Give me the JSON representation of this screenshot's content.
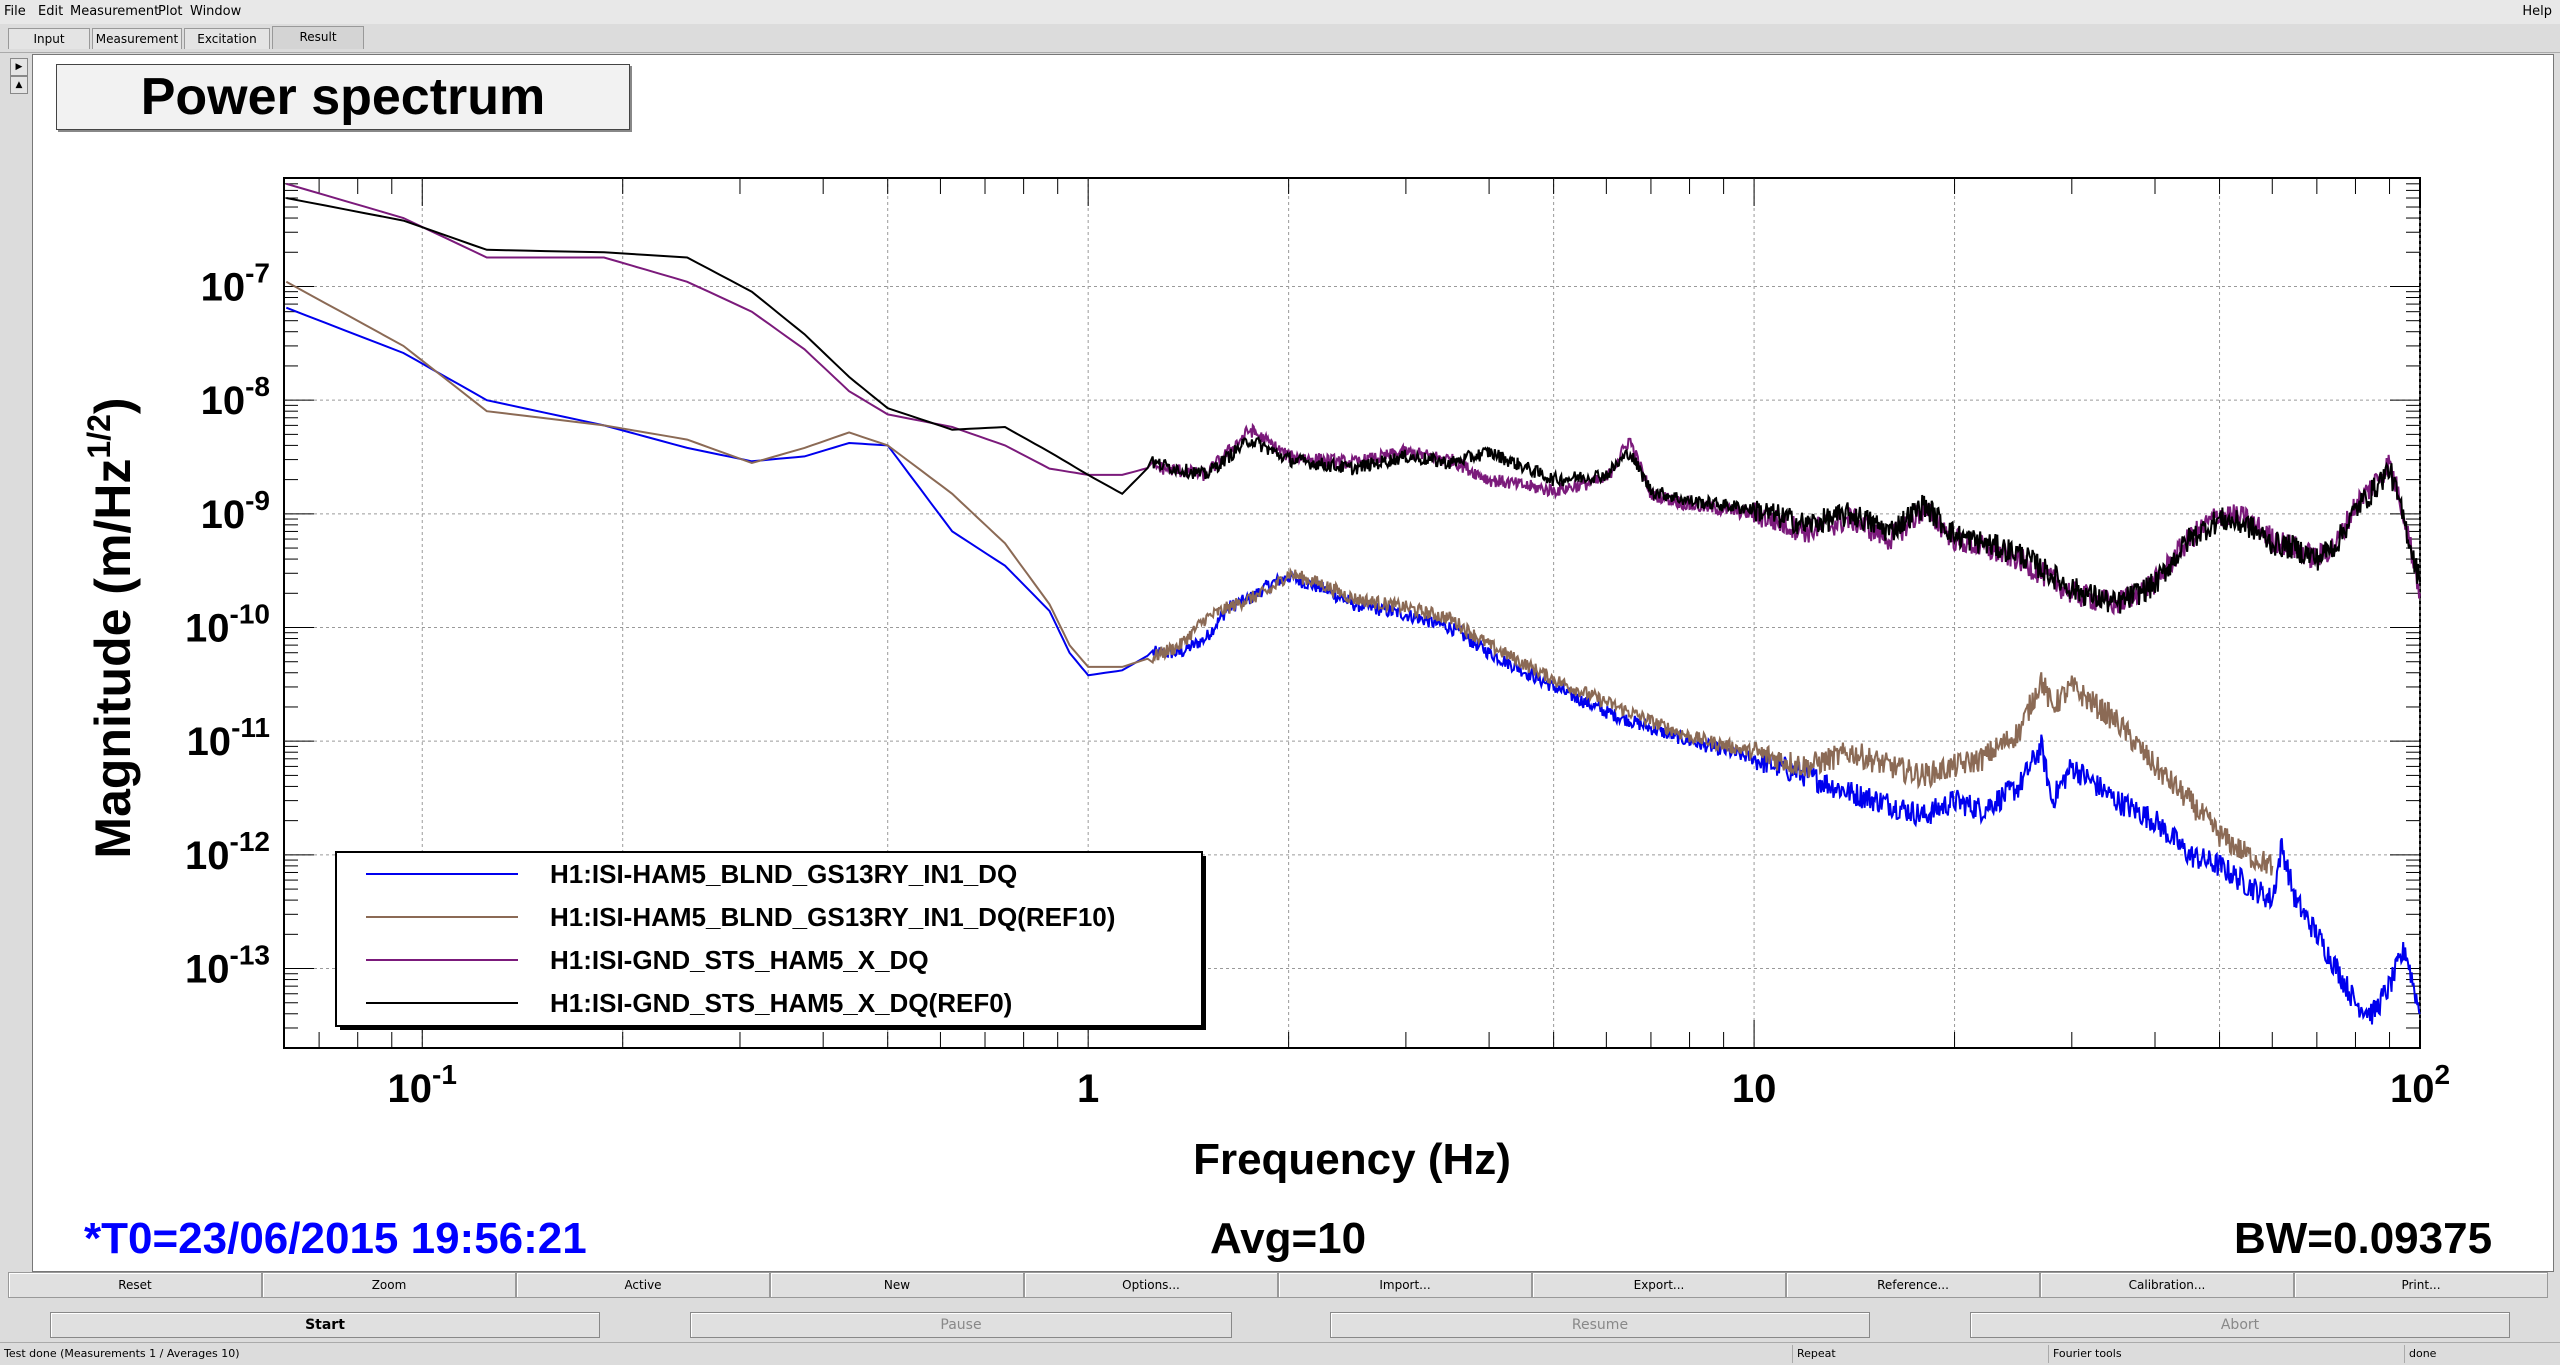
{
  "menu": [
    "File",
    "Edit",
    "Measurement",
    "Plot",
    "Window"
  ],
  "help": "Help",
  "tabs": [
    "Input",
    "Measurement",
    "Excitation",
    "Result"
  ],
  "active_tab": "Result",
  "plot_title": "Power spectrum",
  "footer": {
    "t0": "*T0=23/06/2015 19:56:21",
    "avg": "Avg=10",
    "bw": "BW=0.09375"
  },
  "buttons": [
    "Reset",
    "Zoom",
    "Active",
    "New",
    "Options...",
    "Import...",
    "Export...",
    "Reference...",
    "Calibration...",
    "Print..."
  ],
  "controls": {
    "start": "Start",
    "pause": "Pause",
    "resume": "Resume",
    "abort": "Abort"
  },
  "status": {
    "message": "Test done (Measurements 1 / Averages 10)",
    "repeat": "Repeat",
    "fourier": "Fourier tools",
    "state": "done"
  },
  "colors": {
    "blue": "#0000ee",
    "brown": "#8b6a55",
    "purple": "#7b1a7b",
    "black": "#000000",
    "footer_t0": "#0000ff"
  },
  "chart_data": {
    "type": "line",
    "xlabel": "Frequency (Hz)",
    "ylabel": "Magnitude (m/Hz^1/2)",
    "xscale": "log",
    "yscale": "log",
    "xlim": [
      0.062,
      100
    ],
    "ylim": [
      2e-14,
      9e-07
    ],
    "grid": true,
    "legend_position": "bottom-left",
    "x_tick_labels": [
      "10-1",
      "1",
      "10",
      "102"
    ],
    "y_tick_labels": [
      "10-7",
      "10-8",
      "10-9",
      "10-10",
      "10-11",
      "10-12",
      "10-13"
    ],
    "series": [
      {
        "name": "H1:ISI-HAM5_BLND_GS13RY_IN1_DQ",
        "color": "#0000ee",
        "points": [
          [
            0.0625,
            6.5e-08
          ],
          [
            0.0937,
            2.6e-08
          ],
          [
            0.125,
            1e-08
          ],
          [
            0.1875,
            6e-09
          ],
          [
            0.25,
            3.8e-09
          ],
          [
            0.3125,
            2.9e-09
          ],
          [
            0.375,
            3.2e-09
          ],
          [
            0.4375,
            4.2e-09
          ],
          [
            0.5,
            4e-09
          ],
          [
            0.625,
            7e-10
          ],
          [
            0.75,
            3.5e-10
          ],
          [
            0.875,
            1.4e-10
          ],
          [
            0.9375,
            6e-11
          ],
          [
            1.0,
            3.8e-11
          ],
          [
            1.125,
            4.2e-11
          ],
          [
            1.25,
            6e-11
          ],
          [
            1.375,
            6e-11
          ],
          [
            1.5,
            8e-11
          ],
          [
            1.625,
            1.5e-10
          ],
          [
            1.75,
            1.8e-10
          ],
          [
            1.875,
            2.4e-10
          ],
          [
            2.0,
            2.8e-10
          ],
          [
            2.25,
            2.2e-10
          ],
          [
            2.5,
            1.6e-10
          ],
          [
            3.0,
            1.3e-10
          ],
          [
            3.5,
            1e-10
          ],
          [
            4.0,
            6e-11
          ],
          [
            5.0,
            3e-11
          ],
          [
            6.0,
            1.8e-11
          ],
          [
            7.0,
            1.3e-11
          ],
          [
            8.0,
            1e-11
          ],
          [
            10.0,
            7e-12
          ],
          [
            12.0,
            5e-12
          ],
          [
            14.0,
            3.5e-12
          ],
          [
            16.0,
            2.8e-12
          ],
          [
            18.0,
            2.2e-12
          ],
          [
            20.0,
            3e-12
          ],
          [
            22.0,
            2.5e-12
          ],
          [
            25.0,
            4e-12
          ],
          [
            27.0,
            9e-12
          ],
          [
            28.0,
            3e-12
          ],
          [
            30.0,
            6e-12
          ],
          [
            35.0,
            3e-12
          ],
          [
            40.0,
            2e-12
          ],
          [
            45.0,
            1e-12
          ],
          [
            50.0,
            8e-13
          ],
          [
            55.0,
            5.5e-13
          ],
          [
            60.0,
            4e-13
          ],
          [
            62.0,
            1.2e-12
          ],
          [
            65.0,
            4e-13
          ],
          [
            70.0,
            2e-13
          ],
          [
            75.0,
            1e-13
          ],
          [
            80.0,
            5e-14
          ],
          [
            85.0,
            4e-14
          ],
          [
            90.0,
            7e-14
          ],
          [
            95.0,
            1.5e-13
          ],
          [
            100.0,
            4e-14
          ]
        ]
      },
      {
        "name": "H1:ISI-HAM5_BLND_GS13RY_IN1_DQ(REF10)",
        "color": "#8b6a55",
        "points": [
          [
            0.0625,
            1.1e-07
          ],
          [
            0.0937,
            3e-08
          ],
          [
            0.125,
            8e-09
          ],
          [
            0.1875,
            6e-09
          ],
          [
            0.25,
            4.5e-09
          ],
          [
            0.3125,
            2.8e-09
          ],
          [
            0.375,
            3.8e-09
          ],
          [
            0.4375,
            5.2e-09
          ],
          [
            0.5,
            4e-09
          ],
          [
            0.625,
            1.5e-09
          ],
          [
            0.75,
            5.5e-10
          ],
          [
            0.875,
            1.6e-10
          ],
          [
            0.9375,
            7e-11
          ],
          [
            1.0,
            4.5e-11
          ],
          [
            1.125,
            4.5e-11
          ],
          [
            1.25,
            5.5e-11
          ],
          [
            1.375,
            7e-11
          ],
          [
            1.5,
            1.2e-10
          ],
          [
            1.625,
            1.5e-10
          ],
          [
            1.75,
            1.8e-10
          ],
          [
            1.875,
            2.1e-10
          ],
          [
            2.0,
            3e-10
          ],
          [
            2.25,
            2.4e-10
          ],
          [
            2.5,
            1.8e-10
          ],
          [
            3.0,
            1.5e-10
          ],
          [
            3.5,
            1.2e-10
          ],
          [
            4.0,
            7e-11
          ],
          [
            5.0,
            3.5e-11
          ],
          [
            6.0,
            2.2e-11
          ],
          [
            7.0,
            1.5e-11
          ],
          [
            8.0,
            1.1e-11
          ],
          [
            10.0,
            8e-12
          ],
          [
            12.0,
            6e-12
          ],
          [
            14.0,
            8e-12
          ],
          [
            16.0,
            6e-12
          ],
          [
            18.0,
            5e-12
          ],
          [
            20.0,
            6e-12
          ],
          [
            22.0,
            7e-12
          ],
          [
            25.0,
            1.2e-11
          ],
          [
            27.0,
            3.5e-11
          ],
          [
            28.0,
            2e-11
          ],
          [
            30.0,
            3e-11
          ],
          [
            35.0,
            1.5e-11
          ],
          [
            40.0,
            6e-12
          ],
          [
            45.0,
            3e-12
          ],
          [
            50.0,
            1.5e-12
          ],
          [
            55.0,
            1e-12
          ],
          [
            60.0,
            8e-13
          ]
        ]
      },
      {
        "name": "H1:ISI-GND_STS_HAM5_X_DQ",
        "color": "#7b1a7b",
        "points": [
          [
            0.0625,
            8e-07
          ],
          [
            0.0937,
            4e-07
          ],
          [
            0.125,
            1.8e-07
          ],
          [
            0.1875,
            1.8e-07
          ],
          [
            0.25,
            1.1e-07
          ],
          [
            0.3125,
            6e-08
          ],
          [
            0.375,
            2.8e-08
          ],
          [
            0.4375,
            1.2e-08
          ],
          [
            0.5,
            7.5e-09
          ],
          [
            0.625,
            5.8e-09
          ],
          [
            0.75,
            4e-09
          ],
          [
            0.875,
            2.5e-09
          ],
          [
            1.0,
            2.2e-09
          ],
          [
            1.125,
            2.2e-09
          ],
          [
            1.25,
            2.6e-09
          ],
          [
            1.5,
            2.2e-09
          ],
          [
            1.75,
            5.5e-09
          ],
          [
            2.0,
            3.2e-09
          ],
          [
            2.5,
            2.8e-09
          ],
          [
            3.0,
            3.5e-09
          ],
          [
            3.5,
            3e-09
          ],
          [
            4.0,
            2e-09
          ],
          [
            5.0,
            1.6e-09
          ],
          [
            6.0,
            2e-09
          ],
          [
            6.5,
            4.5e-09
          ],
          [
            7.0,
            1.5e-09
          ],
          [
            8.0,
            1.2e-09
          ],
          [
            10.0,
            1e-09
          ],
          [
            12.0,
            7e-10
          ],
          [
            14.0,
            9e-10
          ],
          [
            16.0,
            6e-10
          ],
          [
            18.0,
            1.1e-09
          ],
          [
            20.0,
            6e-10
          ],
          [
            25.0,
            4e-10
          ],
          [
            30.0,
            2e-10
          ],
          [
            35.0,
            1.6e-10
          ],
          [
            40.0,
            2.5e-10
          ],
          [
            45.0,
            6e-10
          ],
          [
            50.0,
            1e-09
          ],
          [
            55.0,
            9e-10
          ],
          [
            60.0,
            6e-10
          ],
          [
            65.0,
            5e-10
          ],
          [
            70.0,
            4e-10
          ],
          [
            75.0,
            5.5e-10
          ],
          [
            80.0,
            1.2e-09
          ],
          [
            85.0,
            1.8e-09
          ],
          [
            90.0,
            2.8e-09
          ],
          [
            95.0,
            9e-10
          ],
          [
            100.0,
            2e-10
          ]
        ]
      },
      {
        "name": "H1:ISI-GND_STS_HAM5_X_DQ(REF0)",
        "color": "#000000",
        "points": [
          [
            0.0625,
            6e-07
          ],
          [
            0.0937,
            3.8e-07
          ],
          [
            0.125,
            2.1e-07
          ],
          [
            0.1875,
            2e-07
          ],
          [
            0.25,
            1.8e-07
          ],
          [
            0.3125,
            9e-08
          ],
          [
            0.375,
            3.8e-08
          ],
          [
            0.4375,
            1.6e-08
          ],
          [
            0.5,
            8.5e-09
          ],
          [
            0.625,
            5.5e-09
          ],
          [
            0.75,
            5.8e-09
          ],
          [
            0.875,
            3.5e-09
          ],
          [
            1.0,
            2.2e-09
          ],
          [
            1.125,
            1.5e-09
          ],
          [
            1.25,
            2.8e-09
          ],
          [
            1.5,
            2.2e-09
          ],
          [
            1.75,
            4.5e-09
          ],
          [
            2.0,
            3e-09
          ],
          [
            2.5,
            2.5e-09
          ],
          [
            3.0,
            3.2e-09
          ],
          [
            3.5,
            2.8e-09
          ],
          [
            4.0,
            3.5e-09
          ],
          [
            5.0,
            2e-09
          ],
          [
            6.0,
            2.2e-09
          ],
          [
            6.5,
            3.5e-09
          ],
          [
            7.0,
            1.6e-09
          ],
          [
            8.0,
            1.3e-09
          ],
          [
            10.0,
            1.1e-09
          ],
          [
            12.0,
            8e-10
          ],
          [
            14.0,
            1e-09
          ],
          [
            16.0,
            7e-10
          ],
          [
            18.0,
            1.2e-09
          ],
          [
            20.0,
            6.5e-10
          ],
          [
            25.0,
            4.5e-10
          ],
          [
            30.0,
            2.2e-10
          ],
          [
            35.0,
            1.6e-10
          ],
          [
            40.0,
            2.4e-10
          ],
          [
            45.0,
            6e-10
          ],
          [
            50.0,
            9e-10
          ],
          [
            55.0,
            8e-10
          ],
          [
            60.0,
            5.5e-10
          ],
          [
            65.0,
            5e-10
          ],
          [
            70.0,
            4e-10
          ],
          [
            75.0,
            5.5e-10
          ],
          [
            80.0,
            1.1e-09
          ],
          [
            85.0,
            1.6e-09
          ],
          [
            90.0,
            2.5e-09
          ],
          [
            95.0,
            8e-10
          ],
          [
            100.0,
            2.5e-10
          ]
        ]
      }
    ]
  }
}
